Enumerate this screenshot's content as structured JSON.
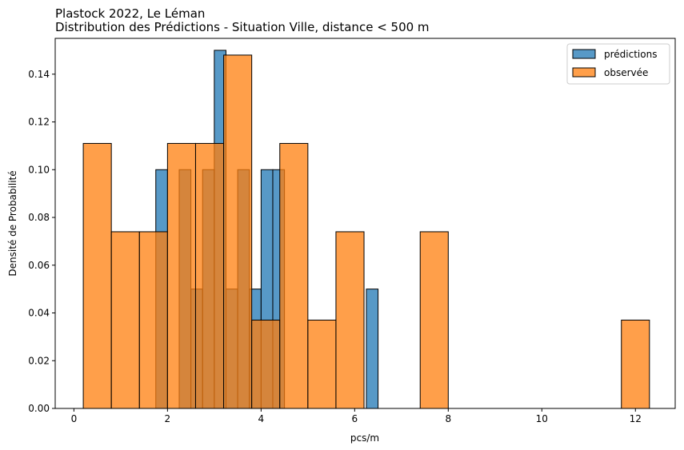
{
  "chart_data": {
    "type": "bar",
    "title": "Plastock 2022, Le Léman",
    "subtitle": "Distribution des Prédictions - Situation Ville, distance < 500 m",
    "xlabel": "pcs/m",
    "ylabel": "Densité de Probabilité",
    "xlim": [
      -0.4,
      12.85
    ],
    "ylim": [
      0,
      0.155
    ],
    "x_ticks": [
      0,
      2,
      4,
      6,
      8,
      10,
      12
    ],
    "y_ticks": [
      0.0,
      0.02,
      0.04,
      0.06,
      0.08,
      0.1,
      0.12,
      0.14
    ],
    "y_tick_labels": [
      "0.00",
      "0.02",
      "0.04",
      "0.06",
      "0.08",
      "0.10",
      "0.12",
      "0.14"
    ],
    "legend_position": "top-right",
    "series": [
      {
        "name": "prédictions",
        "color": "#1f77b4",
        "bins": [
          {
            "x0": 1.75,
            "x1": 2.0,
            "density": 0.1
          },
          {
            "x0": 2.25,
            "x1": 2.5,
            "density": 0.1
          },
          {
            "x0": 2.5,
            "x1": 2.75,
            "density": 0.05
          },
          {
            "x0": 2.75,
            "x1": 3.0,
            "density": 0.1
          },
          {
            "x0": 3.0,
            "x1": 3.25,
            "density": 0.15
          },
          {
            "x0": 3.25,
            "x1": 3.5,
            "density": 0.05
          },
          {
            "x0": 3.5,
            "x1": 3.75,
            "density": 0.1
          },
          {
            "x0": 3.75,
            "x1": 4.0,
            "density": 0.05
          },
          {
            "x0": 4.0,
            "x1": 4.25,
            "density": 0.1
          },
          {
            "x0": 4.25,
            "x1": 4.5,
            "density": 0.1
          },
          {
            "x0": 6.25,
            "x1": 6.5,
            "density": 0.05
          }
        ]
      },
      {
        "name": "observée",
        "color": "#ff7f0e",
        "bins": [
          {
            "x0": 0.2,
            "x1": 0.8,
            "density": 0.111
          },
          {
            "x0": 0.8,
            "x1": 1.4,
            "density": 0.074
          },
          {
            "x0": 1.4,
            "x1": 2.0,
            "density": 0.074
          },
          {
            "x0": 2.0,
            "x1": 2.6,
            "density": 0.111
          },
          {
            "x0": 2.6,
            "x1": 3.2,
            "density": 0.111
          },
          {
            "x0": 3.2,
            "x1": 3.8,
            "density": 0.148
          },
          {
            "x0": 3.8,
            "x1": 4.4,
            "density": 0.037
          },
          {
            "x0": 4.4,
            "x1": 5.0,
            "density": 0.111
          },
          {
            "x0": 5.0,
            "x1": 5.6,
            "density": 0.037
          },
          {
            "x0": 5.6,
            "x1": 6.2,
            "density": 0.074
          },
          {
            "x0": 7.4,
            "x1": 8.0,
            "density": 0.074
          },
          {
            "x0": 11.7,
            "x1": 12.3,
            "density": 0.037
          }
        ]
      }
    ]
  }
}
